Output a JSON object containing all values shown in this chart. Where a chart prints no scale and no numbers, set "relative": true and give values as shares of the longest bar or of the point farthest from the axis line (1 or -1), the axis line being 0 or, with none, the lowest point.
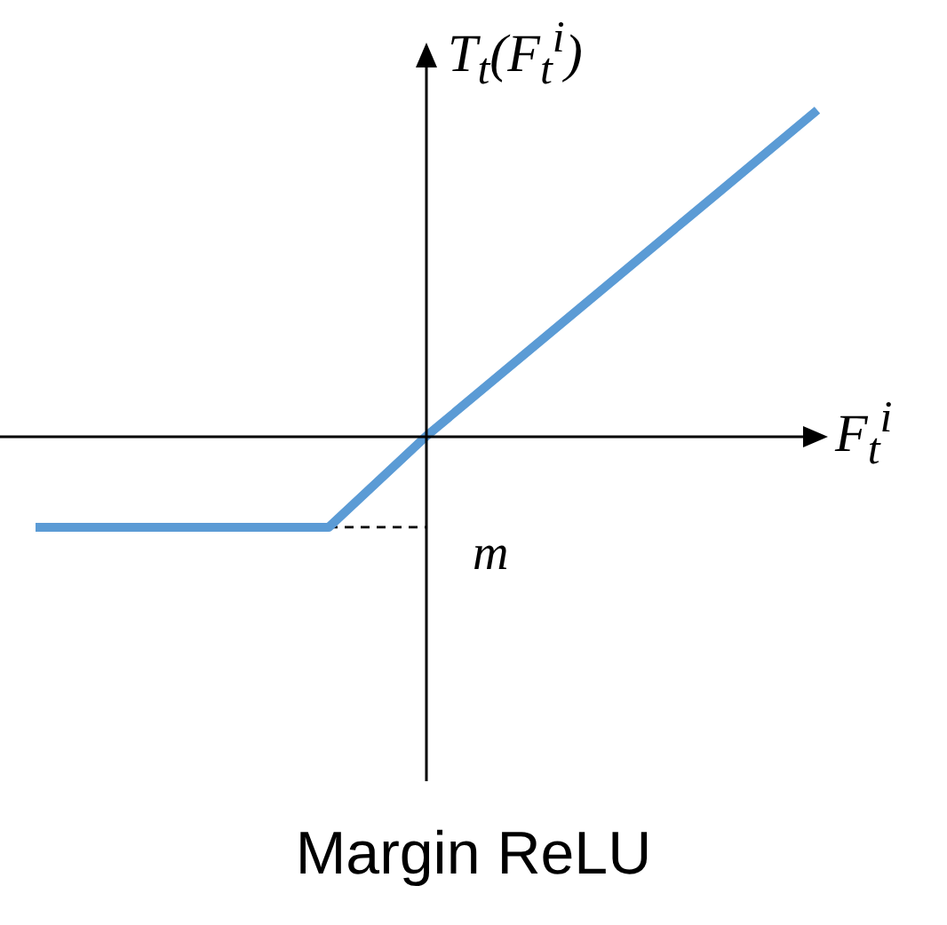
{
  "chart_data": {
    "type": "line",
    "title": "Margin ReLU",
    "xlabel": "F$_{t}$$^{i}$",
    "ylabel": "T$_{t}$(F$_{t}$$^{i}$)",
    "relative": true,
    "categories": [
      null,
      null,
      null,
      null,
      null,
      null,
      null,
      null,
      null
    ],
    "series": [
      {
        "color": "#5b9bd5",
        "values": [
          -0.28,
          -0.28,
          -0.28,
          -0.28,
          0,
          0.25,
          0.5,
          0.75,
          1
        ],
        "line_style": "solid"
      },
      {
        "color": "#000000",
        "values": [
          null,
          null,
          null,
          -0.28,
          -0.28,
          null,
          null,
          null,
          null
        ],
        "line_style": "dashed"
      }
    ],
    "annotations": [
      "m"
    ],
    "legend": false,
    "grid": false,
    "marker": "none"
  }
}
